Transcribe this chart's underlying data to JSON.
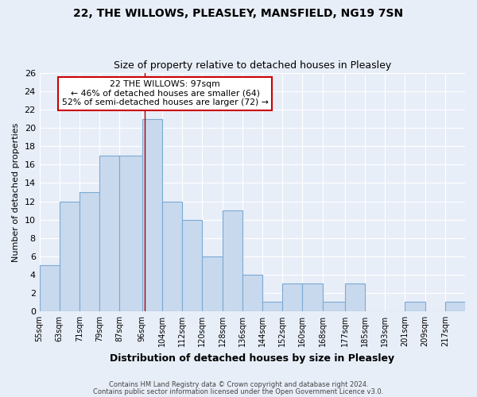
{
  "title": "22, THE WILLOWS, PLEASLEY, MANSFIELD, NG19 7SN",
  "subtitle": "Size of property relative to detached houses in Pleasley",
  "xlabel": "Distribution of detached houses by size in Pleasley",
  "ylabel": "Number of detached properties",
  "bin_labels": [
    "55sqm",
    "63sqm",
    "71sqm",
    "79sqm",
    "87sqm",
    "96sqm",
    "104sqm",
    "112sqm",
    "120sqm",
    "128sqm",
    "136sqm",
    "144sqm",
    "152sqm",
    "160sqm",
    "168sqm",
    "177sqm",
    "185sqm",
    "193sqm",
    "201sqm",
    "209sqm",
    "217sqm"
  ],
  "bin_edges": [
    55,
    63,
    71,
    79,
    87,
    96,
    104,
    112,
    120,
    128,
    136,
    144,
    152,
    160,
    168,
    177,
    185,
    193,
    201,
    209,
    217,
    225
  ],
  "counts": [
    5,
    12,
    13,
    17,
    17,
    21,
    12,
    10,
    6,
    11,
    4,
    1,
    3,
    3,
    1,
    3,
    0,
    0,
    1,
    0,
    1
  ],
  "bar_color": "#c8d9ee",
  "bar_edge_color": "#7baad4",
  "vline_x": 97,
  "vline_color": "#aa0000",
  "annotation_title": "22 THE WILLOWS: 97sqm",
  "annotation_line1": "← 46% of detached houses are smaller (64)",
  "annotation_line2": "52% of semi-detached houses are larger (72) →",
  "annotation_box_edge": "#cc0000",
  "ylim": [
    0,
    26
  ],
  "yticks": [
    0,
    2,
    4,
    6,
    8,
    10,
    12,
    14,
    16,
    18,
    20,
    22,
    24,
    26
  ],
  "background_color": "#e8eef8",
  "grid_color": "#ffffff",
  "footer1": "Contains HM Land Registry data © Crown copyright and database right 2024.",
  "footer2": "Contains public sector information licensed under the Open Government Licence v3.0."
}
